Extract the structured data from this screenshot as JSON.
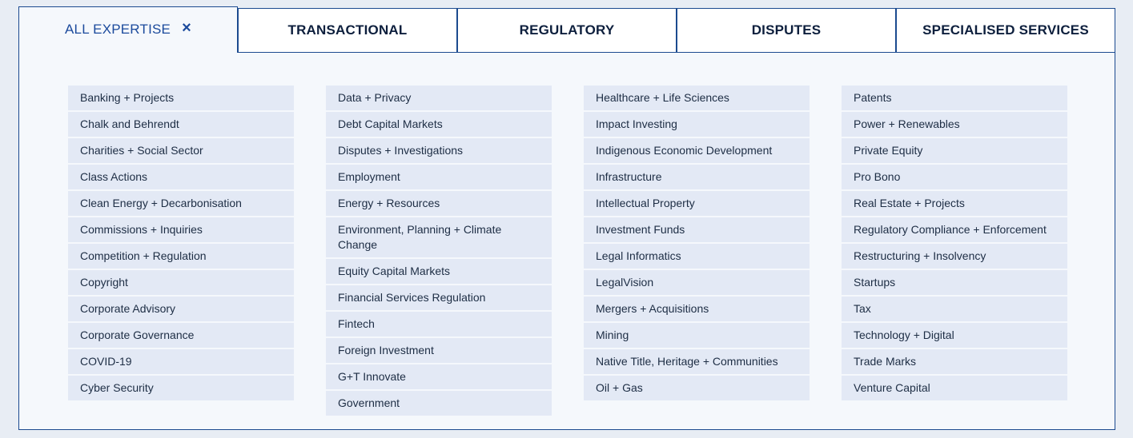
{
  "tabs": [
    {
      "label": "ALL EXPERTISE",
      "close_icon": "×"
    },
    {
      "label": "TRANSACTIONAL"
    },
    {
      "label": "REGULATORY"
    },
    {
      "label": "DISPUTES"
    },
    {
      "label": "SPECIALISED SERVICES"
    }
  ],
  "columns": [
    [
      "Banking + Projects",
      "Chalk and Behrendt",
      "Charities + Social Sector",
      "Class Actions",
      "Clean Energy + Decarbonisation",
      "Commissions + Inquiries",
      "Competition + Regulation",
      "Copyright",
      "Corporate Advisory",
      "Corporate Governance",
      "COVID-19",
      "Cyber Security"
    ],
    [
      "Data + Privacy",
      "Debt Capital Markets",
      "Disputes + Investigations",
      "Employment",
      "Energy + Resources",
      "Environment, Planning + Climate Change",
      "Equity Capital Markets",
      "Financial Services Regulation",
      "Fintech",
      "Foreign Investment",
      "G+T Innovate",
      "Government"
    ],
    [
      "Healthcare + Life Sciences",
      "Impact Investing",
      "Indigenous Economic Development",
      "Infrastructure",
      "Intellectual Property",
      "Investment Funds",
      "Legal Informatics",
      "LegalVision",
      "Mergers + Acquisitions",
      "Mining",
      "Native Title, Heritage + Communities",
      "Oil + Gas"
    ],
    [
      "Patents",
      "Power + Renewables",
      "Private Equity",
      "Pro Bono",
      "Real Estate + Projects",
      "Regulatory Compliance + Enforcement",
      "Restructuring + Insolvency",
      "Startups",
      "Tax",
      "Technology + Digital",
      "Trade Marks",
      "Venture Capital"
    ]
  ]
}
